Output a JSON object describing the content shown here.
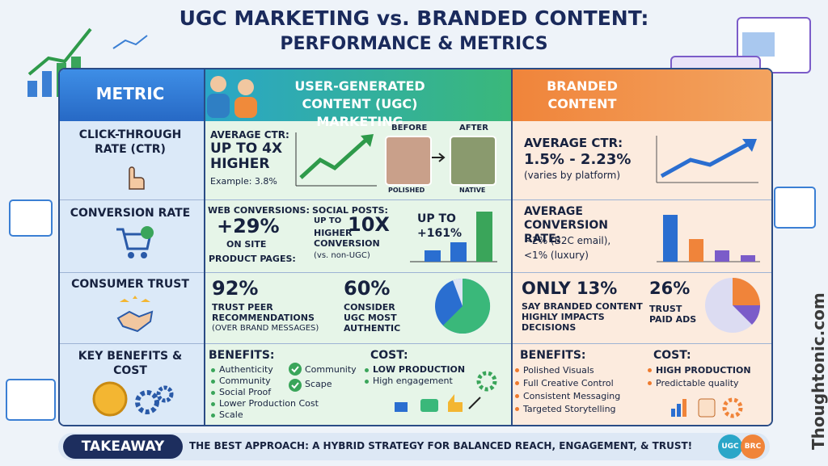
{
  "header": {
    "title": "UGC MARKETING vs. BRANDED CONTENT:",
    "subtitle": "PERFORMANCE & METRICS"
  },
  "table": {
    "columns": [
      "METRIC",
      "USER-GENERATED CONTENT (UGC) MARKETING",
      "BRANDED CONTENT"
    ],
    "rows": [
      {
        "metric": "CLICK-THROUGH RATE (CTR)",
        "ugc": {
          "label": "AVERAGE CTR:",
          "value": "UP TO 4X HIGHER",
          "note": "Example: 3.8%",
          "before": "BEFORE",
          "after": "AFTER",
          "before_caption": "POLISHED",
          "after_caption": "NATIVE"
        },
        "branded": {
          "label": "AVERAGE CTR:",
          "value": "1.5% - 2.23%",
          "note": "(varies by platform)"
        }
      },
      {
        "metric": "CONVERSION RATE",
        "ugc": {
          "web_label": "WEB CONVERSIONS:",
          "web_value": "+29%",
          "web_note": "ON SITE",
          "web_note2": "PRODUCT PAGES:",
          "social_label": "SOCIAL POSTS:",
          "social_prefix": "UP TO",
          "social_value": "10X",
          "social_note": "HIGHER CONVERSION",
          "social_sub": "(vs. non-UGC)",
          "chart_label": "UP TO +161%"
        },
        "branded": {
          "label": "AVERAGE CONVERSION RATE:",
          "line1": "~2% (B2C email),",
          "line2": "<1% (luxury)"
        }
      },
      {
        "metric": "CONSUMER TRUST",
        "ugc": {
          "stat1": "92%",
          "text1": "TRUST PEER RECOMMENDATIONS",
          "sub1": "(OVER BRAND MESSAGES)",
          "stat2": "60%",
          "text2": "CONSIDER UGC MOST AUTHENTIC"
        },
        "branded": {
          "stat1": "ONLY 13%",
          "text1": "SAY BRANDED CONTENT HIGHLY IMPACTS DECISIONS",
          "stat2": "26%",
          "text2": "TRUST PAID ADS"
        }
      },
      {
        "metric": "KEY BENEFITS & COST",
        "ugc": {
          "benefits_heading": "BENEFITS:",
          "benefits": [
            "Authenticity",
            "Community",
            "Social Proof",
            "Lower Production Cost",
            "Scale"
          ],
          "checks": [
            "Community",
            "Scape"
          ],
          "cost_heading": "COST:",
          "cost": [
            "LOW PRODUCTION",
            "High engagement"
          ]
        },
        "branded": {
          "benefits_heading": "BENEFITS:",
          "benefits": [
            "Polished Visuals",
            "Full Creative Control",
            "Consistent Messaging",
            "Targeted Storytelling"
          ],
          "cost_heading": "COST:",
          "cost": [
            "HIGH PRODUCTION",
            "Predictable quality"
          ]
        }
      }
    ]
  },
  "footer": {
    "takeaway": "TAKEAWAY",
    "text": "THE BEST APPROACH: A HYBRID STRATEGY FOR BALANCED REACH, ENGAGEMENT, & TRUST!",
    "badge1": "UGC",
    "badge2": "BRC",
    "watermark": "Thoughtonic.com"
  }
}
